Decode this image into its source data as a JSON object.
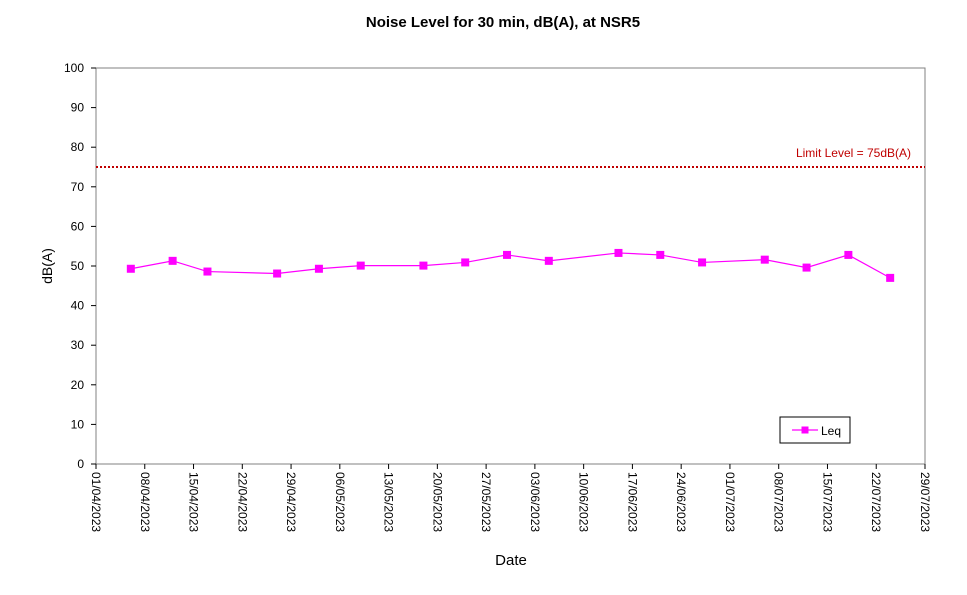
{
  "chart_data": {
    "type": "line",
    "title": "Noise Level for 30 min, dB(A), at NSR5",
    "xlabel": "Date",
    "ylabel": "dB(A)",
    "ylim": [
      0,
      100
    ],
    "yticks": [
      0,
      10,
      20,
      30,
      40,
      50,
      60,
      70,
      80,
      90,
      100
    ],
    "xticks": [
      "01/04/2023",
      "08/04/2023",
      "15/04/2023",
      "22/04/2023",
      "29/04/2023",
      "06/05/2023",
      "13/05/2023",
      "20/05/2023",
      "27/05/2023",
      "03/06/2023",
      "10/06/2023",
      "17/06/2023",
      "24/06/2023",
      "01/07/2023",
      "08/07/2023",
      "15/07/2023",
      "22/07/2023",
      "29/07/2023"
    ],
    "grid": false,
    "legend_position": "bottom-right",
    "series": [
      {
        "name": "Leq",
        "color": "#ff00ff",
        "marker": "square",
        "points": [
          {
            "x": "06/04/2023",
            "y": 49.3
          },
          {
            "x": "12/04/2023",
            "y": 51.3
          },
          {
            "x": "17/04/2023",
            "y": 48.6
          },
          {
            "x": "27/04/2023",
            "y": 48.1
          },
          {
            "x": "03/05/2023",
            "y": 49.3
          },
          {
            "x": "09/05/2023",
            "y": 50.1
          },
          {
            "x": "18/05/2023",
            "y": 50.1
          },
          {
            "x": "24/05/2023",
            "y": 50.9
          },
          {
            "x": "30/05/2023",
            "y": 52.8
          },
          {
            "x": "05/06/2023",
            "y": 51.3
          },
          {
            "x": "15/06/2023",
            "y": 53.3
          },
          {
            "x": "21/06/2023",
            "y": 52.8
          },
          {
            "x": "27/06/2023",
            "y": 50.9
          },
          {
            "x": "06/07/2023",
            "y": 51.6
          },
          {
            "x": "12/07/2023",
            "y": 49.6
          },
          {
            "x": "18/07/2023",
            "y": 52.8
          },
          {
            "x": "24/07/2023",
            "y": 47.0
          }
        ]
      }
    ],
    "limit_line": {
      "value": 75,
      "label": "Limit Level  = 75dB(A)",
      "color": "#c00000",
      "style": "dotted"
    }
  }
}
